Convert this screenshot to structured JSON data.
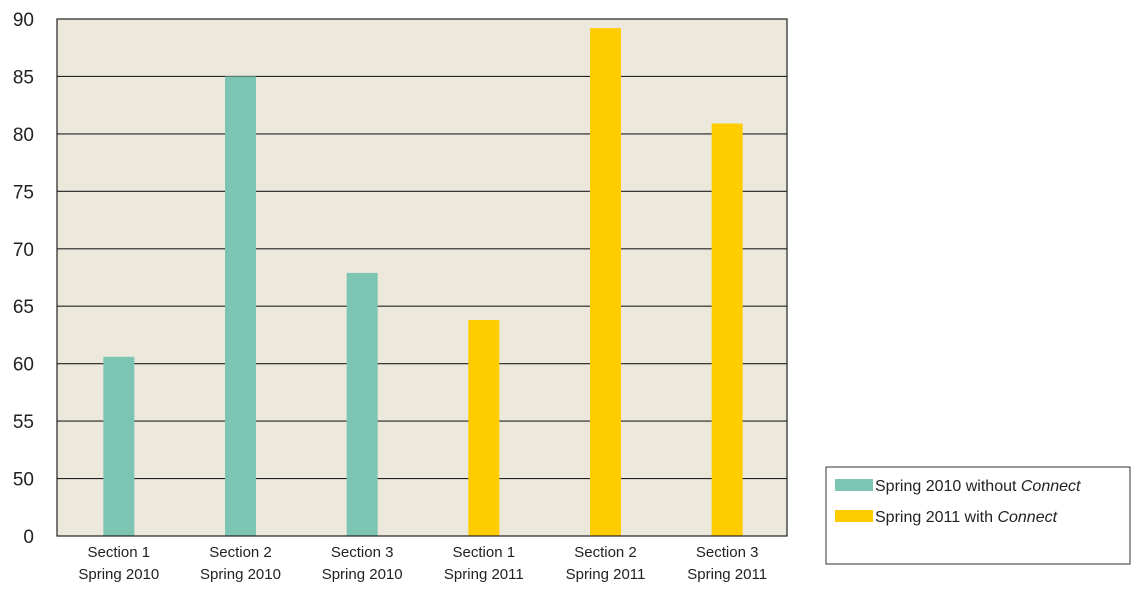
{
  "chart_data": {
    "type": "bar",
    "categories": [
      [
        "Section 1",
        "Spring 2010"
      ],
      [
        "Section 2",
        "Spring 2010"
      ],
      [
        "Section 3",
        "Spring 2010"
      ],
      [
        "Section 1",
        "Spring 2011"
      ],
      [
        "Section 2",
        "Spring 2011"
      ],
      [
        "Section 3",
        "Spring 2011"
      ]
    ],
    "values": [
      60.6,
      85.0,
      67.9,
      63.8,
      89.2,
      80.9
    ],
    "bar_series": [
      0,
      0,
      0,
      1,
      1,
      1
    ],
    "series": [
      {
        "name": "Spring 2010 without ",
        "name_em": "Connect",
        "color": "#7cc5b2"
      },
      {
        "name": "Spring 2011 with ",
        "name_em": "Connect",
        "color": "#ffcc00"
      }
    ],
    "y_ticks": [
      0,
      50,
      55,
      60,
      65,
      70,
      75,
      80,
      85,
      90
    ],
    "axis_break": {
      "display_zero_at": 45
    },
    "ylim": [
      45,
      90
    ],
    "grid": true,
    "plot_background": "#ece8dc",
    "legend_position": "right-bottom",
    "title": "",
    "xlabel": "",
    "ylabel": ""
  }
}
